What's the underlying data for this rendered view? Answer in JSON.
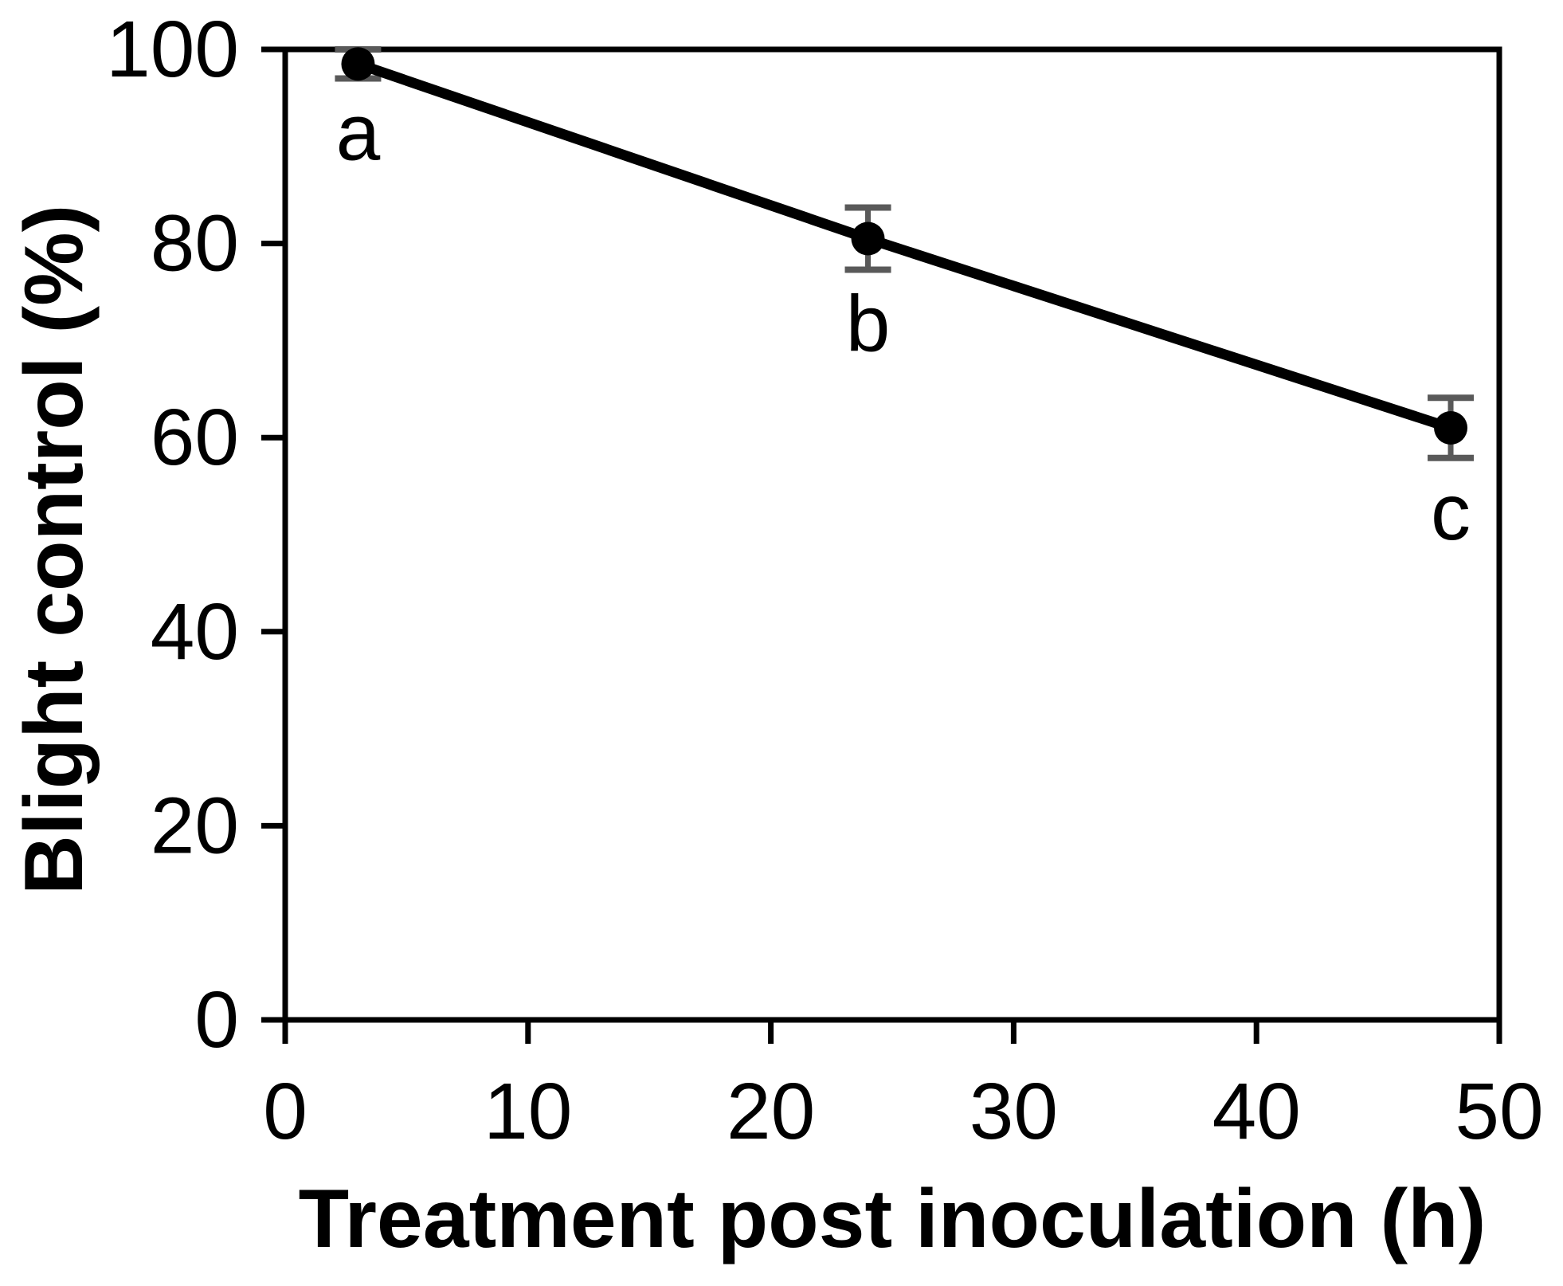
{
  "chart_data": {
    "type": "line",
    "title": "",
    "xlabel": "Treatment post inoculation (h)",
    "ylabel": "Blight control (%)",
    "xlim": [
      0,
      50
    ],
    "ylim": [
      0,
      100
    ],
    "xticks": [
      0,
      10,
      20,
      30,
      40,
      50
    ],
    "yticks": [
      0,
      20,
      40,
      60,
      80,
      100
    ],
    "grid": false,
    "frame": "full-box",
    "legend": "none",
    "colors": {
      "line": "#000000",
      "marker": "#000000",
      "error_bar": "#595959",
      "frame": "#000000",
      "text": "#000000",
      "background": "#ffffff"
    },
    "series": [
      {
        "name": "blight-control",
        "marker": "filled-circle",
        "points": [
          {
            "x": 3,
            "y": 98.5,
            "error": 1.5,
            "annotation": "a"
          },
          {
            "x": 24,
            "y": 80.5,
            "error": 3.2,
            "annotation": "b"
          },
          {
            "x": 48,
            "y": 61.0,
            "error": 3.1,
            "annotation": "c"
          }
        ]
      }
    ]
  }
}
